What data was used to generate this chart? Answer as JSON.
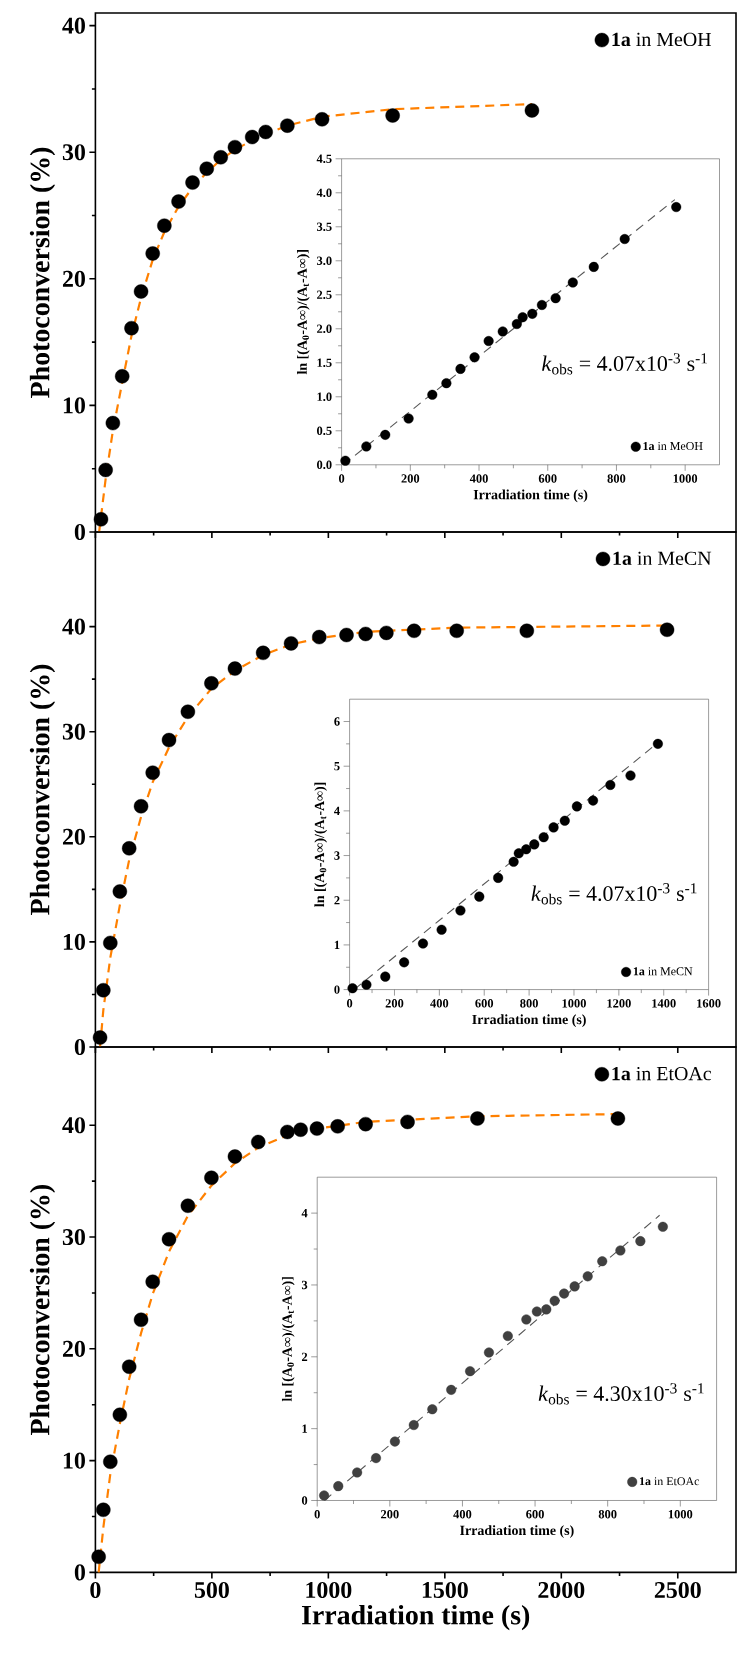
{
  "chart_data": [
    {
      "type": "scatter",
      "ylabel": "Photoconversion (%)",
      "xlim": [
        0,
        2750
      ],
      "ylim": [
        0,
        41
      ],
      "xticks": [
        0,
        500,
        1000,
        1500,
        2000,
        2500
      ],
      "yticks": [
        0,
        10,
        20,
        30,
        40
      ],
      "tick_labels": "y",
      "legend": "top right",
      "marker": "circle",
      "series": [
        {
          "name": "**1a** in MeOH",
          "color": "#000000",
          "x": [
            24,
            44,
            75,
            115,
            155,
            196,
            246,
            296,
            357,
            417,
            478,
            538,
            599,
            673,
            731,
            824,
            973,
            1276,
            1874
          ],
          "values": [
            1.0,
            4.9,
            8.6,
            12.3,
            16.1,
            19.0,
            22.0,
            24.2,
            26.1,
            27.6,
            28.7,
            29.6,
            30.4,
            31.2,
            31.6,
            32.1,
            32.6,
            32.9,
            33.3
          ]
        },
        {
          "type": "line",
          "marker": "none",
          "line_style": "dashed",
          "color": "#ff8000",
          "x": [
            16,
            44,
            75,
            115,
            155,
            196,
            246,
            296,
            357,
            417,
            478,
            538,
            599,
            700,
            824,
            973,
            1276,
            1874
          ],
          "values": [
            0,
            4.2,
            8.0,
            11.8,
            15.5,
            18.5,
            21.5,
            23.7,
            25.7,
            27.2,
            28.4,
            29.4,
            30.2,
            31.2,
            32.1,
            32.8,
            33.4,
            33.8
          ]
        }
      ]
    },
    {
      "type": "scatter",
      "xlabel": "Irradiation time (s)",
      "ylabel": "ln [(A$_{0}$-A∞)/(A$_{t}$-A∞)]",
      "xlim": [
        0,
        1100
      ],
      "ylim": [
        0,
        4.5
      ],
      "xticks": [
        0,
        200,
        400,
        600,
        800,
        1000
      ],
      "yticks": [
        {
          "value": 0,
          "label": "0.0"
        },
        {
          "value": 0.5,
          "label": "0.5"
        },
        {
          "value": 1,
          "label": "1.0"
        },
        {
          "value": 1.5,
          "label": "1.5"
        },
        {
          "value": 2,
          "label": "2.0"
        },
        {
          "value": 2.5,
          "label": "2.5"
        },
        {
          "value": 3,
          "label": "3.0"
        },
        {
          "value": 3.5,
          "label": "3.5"
        },
        {
          "value": 4,
          "label": "4.0"
        },
        {
          "value": 4.5,
          "label": "4.5"
        }
      ],
      "legend": "bottom right",
      "marker": "circle",
      "annotations": [
        "*k*$_{obs}$ = 4.07x10$^{-3}$ s$^{-1}$"
      ],
      "series": [
        {
          "name": "**1a** in MeOH",
          "color": "#000000",
          "x": [
            11,
            72,
            127,
            195,
            264,
            305,
            346,
            387,
            428,
            469,
            510,
            527,
            555,
            583,
            623,
            673,
            734,
            824,
            974
          ],
          "values": [
            0.06,
            0.27,
            0.44,
            0.68,
            1.03,
            1.2,
            1.41,
            1.58,
            1.82,
            1.96,
            2.07,
            2.17,
            2.22,
            2.35,
            2.45,
            2.68,
            2.91,
            3.32,
            3.79
          ]
        },
        {
          "type": "line",
          "marker": "none",
          "line_style": "dashed",
          "color": "#555555",
          "x": [
            5,
            970
          ],
          "values": [
            0,
            3.9
          ]
        }
      ]
    },
    {
      "type": "scatter",
      "ylabel": "Photoconversion (%)",
      "xlim": [
        0,
        2750
      ],
      "ylim": [
        0,
        49
      ],
      "xticks": [
        0,
        500,
        1000,
        1500,
        2000,
        2500
      ],
      "yticks": [
        0,
        10,
        20,
        30,
        40
      ],
      "tick_labels": "y",
      "legend": "top right",
      "marker": "circle",
      "series": [
        {
          "name": "**1a** in MeCN",
          "color": "#000000",
          "x": [
            20,
            34,
            64,
            105,
            145,
            196,
            246,
            316,
            397,
            498,
            599,
            720,
            840,
            961,
            1078,
            1160,
            1249,
            1368,
            1551,
            1852,
            2454
          ],
          "values": [
            0.9,
            5.4,
            9.9,
            14.8,
            18.9,
            22.9,
            26.1,
            29.2,
            31.9,
            34.6,
            36.0,
            37.5,
            38.4,
            39.0,
            39.2,
            39.3,
            39.4,
            39.6,
            39.6,
            39.6,
            39.7
          ]
        },
        {
          "type": "line",
          "marker": "none",
          "line_style": "dashed",
          "color": "#ff8000",
          "x": [
            20,
            34,
            64,
            105,
            145,
            196,
            246,
            316,
            397,
            498,
            599,
            720,
            840,
            961,
            1160,
            1551,
            2454
          ],
          "values": [
            0,
            3.5,
            8.5,
            13.5,
            17.8,
            21.9,
            25.2,
            28.5,
            31.4,
            34.1,
            35.8,
            37.3,
            38.3,
            38.9,
            39.5,
            39.9,
            40.1
          ]
        }
      ]
    },
    {
      "type": "scatter",
      "xlabel": "Irradiation time (s)",
      "ylabel": "ln [(A$_{0}$-A∞)/(A$_{t}$-A∞)]",
      "xlim": [
        0,
        1600
      ],
      "ylim": [
        0,
        6.5
      ],
      "xticks": [
        0,
        200,
        400,
        600,
        800,
        1000,
        1200,
        1400,
        1600
      ],
      "yticks": [
        0,
        1,
        2,
        3,
        4,
        5,
        6
      ],
      "legend": "bottom right",
      "marker": "circle",
      "annotations": [
        "*k*$_{obs}$ = 4.07x10$^{-3}$ s$^{-1}$"
      ],
      "series": [
        {
          "name": "**1a** in MeCN",
          "color": "#000000",
          "x": [
            13,
            75,
            159,
            243,
            327,
            410,
            494,
            578,
            662,
            731,
            754,
            787,
            823,
            865,
            909,
            959,
            1013,
            1085,
            1162,
            1252,
            1374
          ],
          "values": [
            0.03,
            0.11,
            0.29,
            0.61,
            1.03,
            1.34,
            1.77,
            2.08,
            2.5,
            2.86,
            3.05,
            3.14,
            3.25,
            3.41,
            3.63,
            3.78,
            4.1,
            4.23,
            4.58,
            4.79,
            5.5
          ]
        },
        {
          "type": "line",
          "marker": "none",
          "line_style": "dashed",
          "color": "#555555",
          "x": [
            20,
            1380
          ],
          "values": [
            0,
            5.55
          ]
        }
      ]
    },
    {
      "type": "scatter",
      "xlabel": "Irradiation time (s)",
      "ylabel": "Photoconversion (%)",
      "xlim": [
        0,
        2750
      ],
      "ylim": [
        0,
        47
      ],
      "xticks": [
        0,
        500,
        1000,
        1500,
        2000,
        2500
      ],
      "yticks": [
        0,
        10,
        20,
        30,
        40
      ],
      "legend": "top right",
      "marker": "circle",
      "series": [
        {
          "name": "**1a** in EtOAc",
          "color": "#000000",
          "x": [
            14,
            34,
            64,
            105,
            145,
            196,
            246,
            316,
            397,
            498,
            599,
            699,
            824,
            881,
            951,
            1040,
            1160,
            1340,
            1640,
            2243
          ],
          "values": [
            1.4,
            5.6,
            9.9,
            14.1,
            18.4,
            22.6,
            26.0,
            29.8,
            32.8,
            35.3,
            37.2,
            38.5,
            39.4,
            39.6,
            39.7,
            39.9,
            40.1,
            40.3,
            40.6,
            40.6
          ]
        },
        {
          "type": "line",
          "marker": "none",
          "line_style": "dashed",
          "color": "#ff8000",
          "x": [
            14,
            34,
            64,
            105,
            145,
            196,
            246,
            316,
            397,
            498,
            599,
            699,
            824,
            951,
            1160,
            1640,
            2243
          ],
          "values": [
            0,
            4,
            8.8,
            13.3,
            17.3,
            21.4,
            24.9,
            28.7,
            31.9,
            34.6,
            36.6,
            38.0,
            39.1,
            39.7,
            40.3,
            40.8,
            41.0
          ]
        }
      ]
    },
    {
      "type": "scatter",
      "xlabel": "Irradiation time (s)",
      "ylabel": "ln [(A$_{0}$-A∞)/(A$_{t}$-A∞)]",
      "xlim": [
        0,
        1100
      ],
      "ylim": [
        0,
        4.5
      ],
      "xticks": [
        0,
        200,
        400,
        600,
        800,
        1000
      ],
      "yticks": [
        0,
        1,
        2,
        3,
        4
      ],
      "legend": "bottom right",
      "marker": "circle",
      "annotations": [
        "*k*$_{obs}$ = 4.30x10$^{-3}$ s$^{-1}$"
      ],
      "series": [
        {
          "name": "**1a** in EtOAc",
          "color": "#404040",
          "x": [
            19,
            58,
            110,
            162,
            214,
            266,
            317,
            369,
            421,
            473,
            525,
            576,
            605,
            631,
            654,
            680,
            709,
            745,
            785,
            835,
            890,
            952
          ],
          "values": [
            0.07,
            0.2,
            0.39,
            0.59,
            0.82,
            1.05,
            1.27,
            1.54,
            1.8,
            2.06,
            2.29,
            2.52,
            2.63,
            2.66,
            2.78,
            2.88,
            2.98,
            3.12,
            3.33,
            3.48,
            3.61,
            3.81
          ]
        },
        {
          "type": "line",
          "marker": "none",
          "line_style": "dashed",
          "color": "#555555",
          "x": [
            20,
            943
          ],
          "values": [
            0,
            3.97
          ]
        }
      ]
    }
  ]
}
